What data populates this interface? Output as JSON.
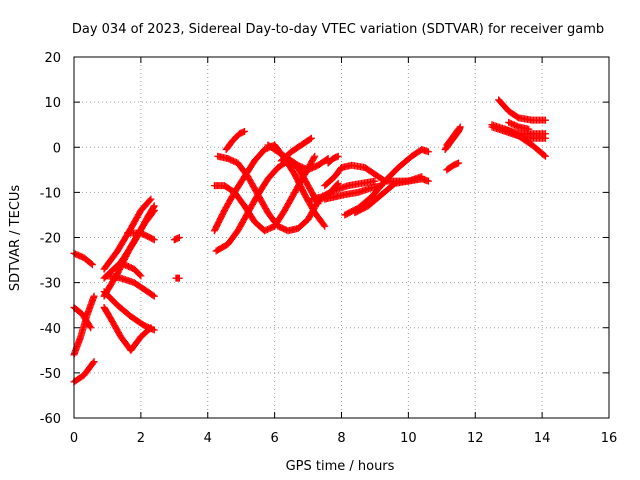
{
  "chart_data": {
    "type": "scatter",
    "title": "Day 034 of 2023, Sidereal Day-to-day VTEC variation (SDTVAR) for receiver gamb",
    "xlabel": "GPS time / hours",
    "ylabel": "SDTVAR / TECUs",
    "xlim": [
      0,
      16
    ],
    "ylim": [
      -60,
      20
    ],
    "x_ticks": [
      0,
      2,
      4,
      6,
      8,
      10,
      12,
      14,
      16
    ],
    "y_ticks": [
      -60,
      -50,
      -40,
      -30,
      -20,
      -10,
      0,
      10,
      20
    ],
    "grid": true,
    "marker": "plus",
    "series_color": "#ff0000",
    "tracks": [
      [
        [
          0.0,
          -23.5
        ],
        [
          0.3,
          -24.5
        ],
        [
          0.55,
          -26.0
        ]
      ],
      [
        [
          0.0,
          -46.0
        ],
        [
          0.2,
          -42.0
        ],
        [
          0.4,
          -37.0
        ],
        [
          0.6,
          -33.0
        ]
      ],
      [
        [
          0.0,
          -35.5
        ],
        [
          0.25,
          -37.0
        ],
        [
          0.5,
          -40.0
        ]
      ],
      [
        [
          0.0,
          -52.0
        ],
        [
          0.3,
          -50.5
        ],
        [
          0.6,
          -47.5
        ]
      ],
      [
        [
          0.9,
          -35.5
        ],
        [
          1.1,
          -38.0
        ],
        [
          1.4,
          -42.0
        ],
        [
          1.7,
          -45.0
        ],
        [
          2.0,
          -42.0
        ],
        [
          2.3,
          -40.0
        ]
      ],
      [
        [
          0.9,
          -27.0
        ],
        [
          1.3,
          -23.0
        ],
        [
          1.7,
          -18.0
        ],
        [
          2.0,
          -14.0
        ],
        [
          2.3,
          -11.5
        ]
      ],
      [
        [
          0.9,
          -29.0
        ],
        [
          1.4,
          -25.5
        ],
        [
          1.8,
          -21.0
        ],
        [
          2.2,
          -15.5
        ],
        [
          2.4,
          -13.0
        ]
      ],
      [
        [
          0.9,
          -33.0
        ],
        [
          1.3,
          -28.0
        ],
        [
          1.7,
          -22.0
        ],
        [
          2.1,
          -17.0
        ],
        [
          2.4,
          -14.0
        ]
      ],
      [
        [
          1.0,
          -28.5
        ],
        [
          1.4,
          -29.0
        ],
        [
          1.8,
          -30.0
        ],
        [
          2.1,
          -31.5
        ],
        [
          2.4,
          -33.0
        ]
      ],
      [
        [
          0.9,
          -32.0
        ],
        [
          1.3,
          -35.0
        ],
        [
          1.7,
          -37.5
        ],
        [
          2.1,
          -39.5
        ],
        [
          2.4,
          -40.5
        ]
      ],
      [
        [
          1.5,
          -26.0
        ],
        [
          1.8,
          -27.0
        ],
        [
          2.0,
          -28.5
        ]
      ],
      [
        [
          1.6,
          -19.0
        ],
        [
          2.0,
          -19.0
        ],
        [
          2.4,
          -20.5
        ]
      ],
      [
        [
          3.0,
          -20.5
        ],
        [
          3.15,
          -20.0
        ]
      ],
      [
        [
          3.05,
          -29.0
        ],
        [
          3.15,
          -29.0
        ]
      ],
      [
        [
          4.25,
          -23.0
        ],
        [
          4.6,
          -21.5
        ],
        [
          4.9,
          -18.5
        ],
        [
          5.2,
          -14.5
        ],
        [
          5.5,
          -10.5
        ],
        [
          5.8,
          -7.0
        ],
        [
          6.1,
          -4.5
        ],
        [
          6.4,
          -3.0
        ],
        [
          6.7,
          -4.5
        ],
        [
          7.0,
          -8.5
        ],
        [
          7.3,
          -12.5
        ]
      ],
      [
        [
          4.2,
          -8.5
        ],
        [
          4.5,
          -8.5
        ],
        [
          4.8,
          -10.0
        ],
        [
          5.1,
          -13.0
        ],
        [
          5.4,
          -16.5
        ],
        [
          5.7,
          -18.5
        ],
        [
          6.0,
          -17.5
        ],
        [
          6.3,
          -14.0
        ],
        [
          6.6,
          -10.0
        ],
        [
          6.9,
          -6.0
        ],
        [
          7.2,
          -2.0
        ]
      ],
      [
        [
          4.2,
          -18.5
        ],
        [
          4.5,
          -14.0
        ],
        [
          4.8,
          -10.0
        ],
        [
          5.1,
          -6.5
        ],
        [
          5.4,
          -3.0
        ],
        [
          5.7,
          -0.5
        ],
        [
          6.0,
          0.5
        ],
        [
          6.3,
          -2.5
        ],
        [
          6.6,
          -6.0
        ],
        [
          6.9,
          -10.5
        ],
        [
          7.2,
          -14.5
        ],
        [
          7.5,
          -17.5
        ]
      ],
      [
        [
          4.3,
          -2.0
        ],
        [
          4.6,
          -2.5
        ],
        [
          4.9,
          -3.5
        ],
        [
          5.2,
          -6.5
        ],
        [
          5.5,
          -10.5
        ],
        [
          5.8,
          -14.5
        ],
        [
          6.1,
          -17.5
        ],
        [
          6.4,
          -18.5
        ],
        [
          6.7,
          -18.0
        ],
        [
          7.0,
          -16.0
        ],
        [
          7.3,
          -12.0
        ],
        [
          7.6,
          -10.5
        ],
        [
          7.9,
          -8.0
        ]
      ],
      [
        [
          4.55,
          -0.5
        ],
        [
          4.75,
          1.5
        ],
        [
          4.95,
          3.0
        ],
        [
          5.1,
          3.5
        ]
      ],
      [
        [
          5.8,
          0.5
        ],
        [
          6.1,
          -1.0
        ],
        [
          6.4,
          -2.5
        ],
        [
          6.7,
          -4.0
        ],
        [
          7.0,
          -5.0
        ],
        [
          7.3,
          -4.0
        ],
        [
          7.6,
          -2.5
        ]
      ],
      [
        [
          6.2,
          -3.0
        ],
        [
          6.5,
          -1.0
        ],
        [
          6.8,
          0.5
        ],
        [
          7.0,
          1.5
        ],
        [
          7.1,
          2.0
        ]
      ],
      [
        [
          7.1,
          -11.5
        ],
        [
          7.4,
          -11.0
        ],
        [
          7.8,
          -9.5
        ],
        [
          8.2,
          -8.5
        ],
        [
          8.6,
          -8.0
        ],
        [
          9.0,
          -7.5
        ]
      ],
      [
        [
          7.5,
          -8.5
        ],
        [
          7.8,
          -6.5
        ],
        [
          8.0,
          -4.5
        ],
        [
          8.3,
          -4.0
        ],
        [
          8.7,
          -4.5
        ],
        [
          9.0,
          -6.0
        ],
        [
          9.3,
          -7.5
        ],
        [
          9.6,
          -7.5
        ],
        [
          10.0,
          -7.5
        ],
        [
          10.4,
          -6.5
        ]
      ],
      [
        [
          7.5,
          -11.5
        ],
        [
          7.8,
          -11.0
        ],
        [
          8.1,
          -10.5
        ],
        [
          8.5,
          -10.0
        ],
        [
          8.9,
          -9.0
        ],
        [
          9.2,
          -8.5
        ]
      ],
      [
        [
          8.1,
          -15.0
        ],
        [
          8.5,
          -13.5
        ],
        [
          8.9,
          -11.0
        ],
        [
          9.3,
          -7.5
        ],
        [
          9.7,
          -4.5
        ],
        [
          10.1,
          -2.0
        ],
        [
          10.4,
          -0.5
        ],
        [
          10.6,
          -1.0
        ]
      ],
      [
        [
          8.4,
          -14.5
        ],
        [
          8.8,
          -13.0
        ],
        [
          9.2,
          -10.5
        ],
        [
          9.6,
          -8.0
        ],
        [
          10.0,
          -7.5
        ],
        [
          10.4,
          -7.0
        ],
        [
          10.6,
          -7.5
        ]
      ],
      [
        [
          7.6,
          -3.5
        ],
        [
          7.75,
          -2.5
        ],
        [
          7.9,
          -2.0
        ]
      ],
      [
        [
          11.15,
          -5.0
        ],
        [
          11.35,
          -4.0
        ],
        [
          11.5,
          -3.5
        ]
      ],
      [
        [
          11.1,
          -0.5
        ],
        [
          11.3,
          1.5
        ],
        [
          11.5,
          3.5
        ],
        [
          11.55,
          4.5
        ]
      ],
      [
        [
          11.15,
          0.5
        ],
        [
          11.35,
          2.5
        ],
        [
          11.5,
          4.0
        ]
      ],
      [
        [
          12.7,
          10.5
        ],
        [
          13.0,
          8.0
        ],
        [
          13.3,
          6.5
        ],
        [
          13.7,
          6.0
        ],
        [
          14.1,
          6.0
        ]
      ],
      [
        [
          12.5,
          5.0
        ],
        [
          12.9,
          4.0
        ],
        [
          13.3,
          3.0
        ],
        [
          13.7,
          3.0
        ],
        [
          14.1,
          3.0
        ]
      ],
      [
        [
          12.5,
          4.5
        ],
        [
          12.9,
          3.5
        ],
        [
          13.3,
          2.5
        ],
        [
          13.7,
          2.0
        ],
        [
          14.1,
          2.0
        ]
      ],
      [
        [
          12.9,
          4.0
        ],
        [
          13.3,
          2.5
        ],
        [
          13.7,
          0.5
        ],
        [
          14.1,
          -2.0
        ]
      ],
      [
        [
          13.0,
          5.5
        ],
        [
          13.3,
          4.5
        ],
        [
          13.6,
          4.0
        ]
      ]
    ]
  }
}
